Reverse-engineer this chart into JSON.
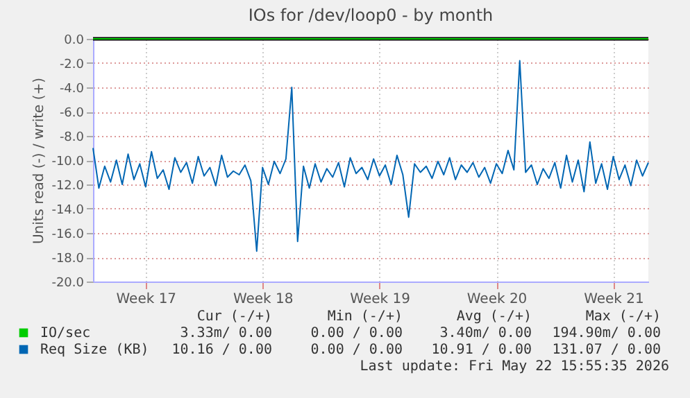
{
  "chart_data": {
    "type": "line",
    "title": "IOs for /dev/loop0 - by month",
    "ylabel": "Units read (-) / write (+)",
    "categories": [
      null,
      null,
      null,
      null,
      null,
      null,
      null,
      null,
      null,
      "Week 17",
      null,
      null,
      null,
      null,
      null,
      null,
      null,
      null,
      null,
      null,
      null,
      null,
      null,
      null,
      null,
      null,
      null,
      null,
      null,
      "Week 18",
      null,
      null,
      null,
      null,
      null,
      null,
      null,
      null,
      null,
      null,
      null,
      null,
      null,
      null,
      null,
      null,
      null,
      null,
      null,
      "Week 19",
      null,
      null,
      null,
      null,
      null,
      null,
      null,
      null,
      null,
      null,
      null,
      null,
      null,
      null,
      null,
      null,
      null,
      null,
      null,
      "Week 20",
      null,
      null,
      null,
      null,
      null,
      null,
      null,
      null,
      null,
      null,
      null,
      null,
      null,
      null,
      null,
      null,
      null,
      null,
      null,
      "Week 21",
      null,
      null,
      null,
      null,
      null,
      null
    ],
    "series": [
      {
        "name": "IO/sec",
        "color": "#00cc00",
        "values": [
          0,
          0,
          0,
          0,
          0,
          0,
          0,
          0,
          0,
          0,
          0,
          0,
          0,
          0,
          0,
          0,
          0,
          0,
          0,
          0,
          0,
          0,
          0,
          0,
          0,
          0,
          0,
          0,
          0,
          0,
          0,
          0,
          0,
          0,
          0,
          0,
          0,
          0,
          0,
          0,
          0,
          0,
          0,
          0,
          0,
          0,
          0,
          0,
          0,
          0,
          0,
          0,
          0,
          0,
          0,
          0,
          0,
          0,
          0,
          0,
          0,
          0,
          0,
          0,
          0,
          0,
          0,
          0,
          0,
          0,
          0,
          0,
          0,
          0,
          0,
          0,
          0,
          0,
          0,
          0,
          0,
          0,
          0,
          0,
          0,
          0,
          0,
          0,
          0,
          0,
          0,
          0,
          0,
          0,
          0,
          0
        ]
      },
      {
        "name": "Req Size (KB)",
        "color": "#0066b3",
        "values": [
          -9.0,
          -12.3,
          -10.5,
          -11.8,
          -10.0,
          -12.0,
          -9.5,
          -11.6,
          -10.3,
          -12.2,
          -9.3,
          -11.5,
          -10.8,
          -12.4,
          -9.8,
          -11.0,
          -10.2,
          -11.9,
          -9.7,
          -11.3,
          -10.6,
          -12.1,
          -9.6,
          -11.4,
          -10.9,
          -11.2,
          -10.4,
          -11.7,
          -17.5,
          -10.6,
          -12.0,
          -10.1,
          -11.1,
          -9.9,
          -4.0,
          -16.7,
          -10.5,
          -12.3,
          -10.3,
          -11.8,
          -10.7,
          -11.4,
          -10.2,
          -12.2,
          -9.8,
          -11.1,
          -10.6,
          -11.6,
          -9.9,
          -11.3,
          -10.4,
          -12.0,
          -9.6,
          -11.2,
          -14.7,
          -10.3,
          -11.0,
          -10.5,
          -11.5,
          -10.1,
          -11.2,
          -9.8,
          -11.6,
          -10.4,
          -11.0,
          -10.2,
          -11.4,
          -10.6,
          -11.9,
          -10.3,
          -11.1,
          -9.2,
          -10.8,
          -1.8,
          -11.0,
          -10.4,
          -12.0,
          -10.7,
          -11.5,
          -10.2,
          -12.3,
          -9.6,
          -11.8,
          -10.0,
          -12.6,
          -8.5,
          -11.9,
          -10.3,
          -12.4,
          -9.7,
          -11.6,
          -10.4,
          -12.1,
          -10.0,
          -11.3,
          -10.2
        ]
      }
    ],
    "ylim": [
      -20,
      0
    ],
    "yticks": [
      {
        "value": 0,
        "label": "0.0"
      },
      {
        "value": -2,
        "label": "-2.0"
      },
      {
        "value": -4,
        "label": "-4.0"
      },
      {
        "value": -6,
        "label": "-6.0"
      },
      {
        "value": -8,
        "label": "-8.0"
      },
      {
        "value": -10,
        "label": "-10.0"
      },
      {
        "value": -12,
        "label": "-12.0"
      },
      {
        "value": -14,
        "label": "-14.0"
      },
      {
        "value": -16,
        "label": "-16.0"
      },
      {
        "value": -18,
        "label": "-18.0"
      },
      {
        "value": -20,
        "label": "-20.0"
      }
    ],
    "ref_lines": [
      {
        "axis": "y",
        "value": 0,
        "color": "#000000"
      }
    ],
    "grid": true,
    "legend": "bottom left",
    "annotations": [
      "Cur (-/+)",
      "Min (-/+)",
      "Avg (-/+)",
      "Max (-/+)",
      "3.33m/ 0.00",
      "0.00 / 0.00",
      "3.40m/ 0.00",
      "194.90m/ 0.00",
      "10.16 / 0.00",
      "0.00 / 0.00",
      "10.91 / 0.00",
      "131.07 / 0.00",
      "Last update: Fri May 22 15:55:35 2026"
    ]
  }
}
